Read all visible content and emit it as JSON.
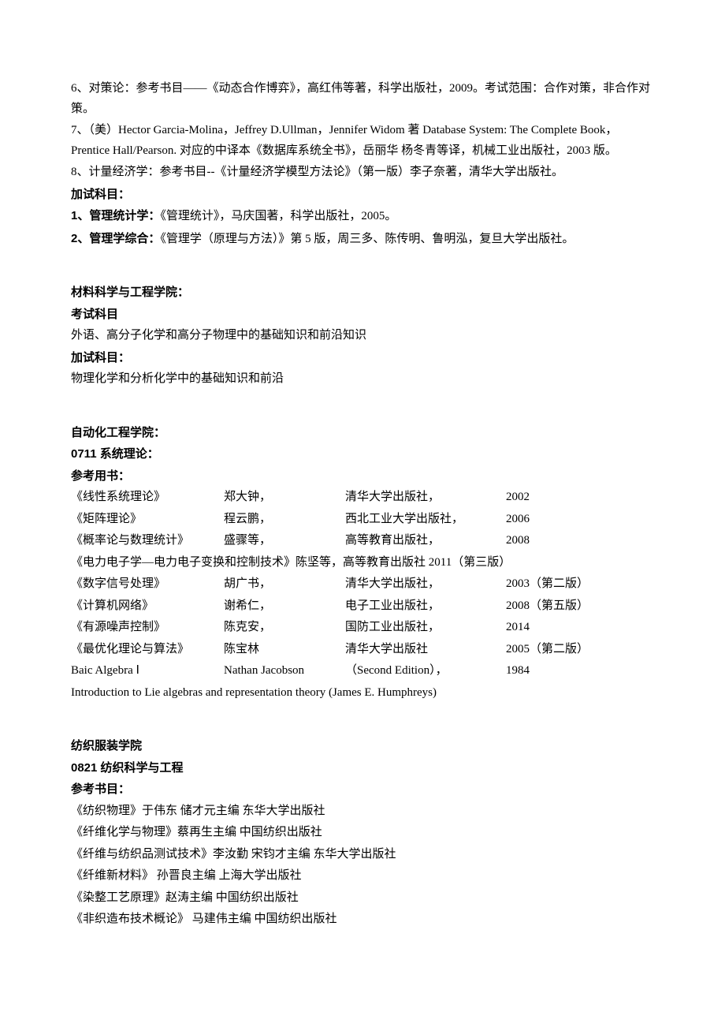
{
  "top": {
    "p1": "6、对策论：参考书目——《动态合作博弈》，高红伟等著，科学出版社，2009。考试范围：合作对策，非合作对策。",
    "p2": "7、（美）Hector Garcia-Molina，Jeffrey D.Ullman，Jennifer Widom 著 Database System: The Complete Book， Prentice Hall/Pearson. 对应的中译本《数据库系统全书》，岳丽华 杨冬青等译，机械工业出版社，2003 版。",
    "p3": "8、计量经济学：参考书目--《计量经济学模型方法论》（第一版）李子奈著，清华大学出版社。",
    "h1": "加试科目：",
    "p4": "1、管理统计学：《管理统计》，马庆国著，科学出版社，2005。",
    "p5": "2、管理学综合：《管理学（原理与方法）》第 5 版，周三多、陈传明、鲁明泓，复旦大学出版社。"
  },
  "mat": {
    "h1": "材料科学与工程学院：",
    "h2": "考试科目",
    "p1": "外语、高分子化学和高分子物理中的基础知识和前沿知识",
    "h3": "加试科目：",
    "p2": "物理化学和分析化学中的基础知识和前沿"
  },
  "auto": {
    "h1": "自动化工程学院：",
    "h2": "0711 系统理论：",
    "h3": "参考用书：",
    "rows": [
      {
        "c1": "《线性系统理论》",
        "c2": "郑大钟，",
        "c3": "清华大学出版社，",
        "c4": "2002"
      },
      {
        "c1": "《矩阵理论》",
        "c2": "程云鹏，",
        "c3": "西北工业大学出版社，",
        "c4": "2006"
      },
      {
        "c1": "《概率论与数理统计》",
        "c2": "盛骤等，",
        "c3": "高等教育出版社，",
        "c4": "2008"
      }
    ],
    "full1": "《电力电子学—电力电子变换和控制技术》陈坚等，高等教育出版社 2011（第三版）",
    "rows2": [
      {
        "c1": "《数字信号处理》",
        "c2": "胡广书，",
        "c3": "清华大学出版社，",
        "c4": "2003（第二版）"
      },
      {
        "c1": "《计算机网络》",
        "c2": "谢希仁，",
        "c3": "电子工业出版社，",
        "c4": "2008（第五版）"
      },
      {
        "c1": "《有源噪声控制》",
        "c2": "陈克安，",
        "c3": "国防工业出版社，",
        "c4": "2014"
      },
      {
        "c1": "《最优化理论与算法》",
        "c2": "陈宝林",
        "c3": "清华大学出版社",
        "c4": "2005（第二版）"
      },
      {
        "c1": "Baic Algebra  Ⅰ",
        "c2": "Nathan Jacobson",
        "c3": "（Second Edition），",
        "c4": "1984"
      }
    ],
    "full2": "Introduction to Lie algebras and representation theory (James E. Humphreys)"
  },
  "tex": {
    "h1": "纺织服装学院",
    "h2": "0821 纺织科学与工程",
    "h3": "参考书目：",
    "p1": "《纺织物理》于伟东 储才元主编 东华大学出版社",
    "p2": "《纤维化学与物理》蔡再生主编 中国纺织出版社",
    "p3": "《纤维与纺织品测试技术》李汝勤 宋钧才主编 东华大学出版社",
    "p4": "《纤维新材料》 孙晋良主编 上海大学出版社",
    "p5": "《染整工艺原理》赵涛主编 中国纺织出版社",
    "p6": "《非织造布技术概论》 马建伟主编 中国纺织出版社"
  }
}
